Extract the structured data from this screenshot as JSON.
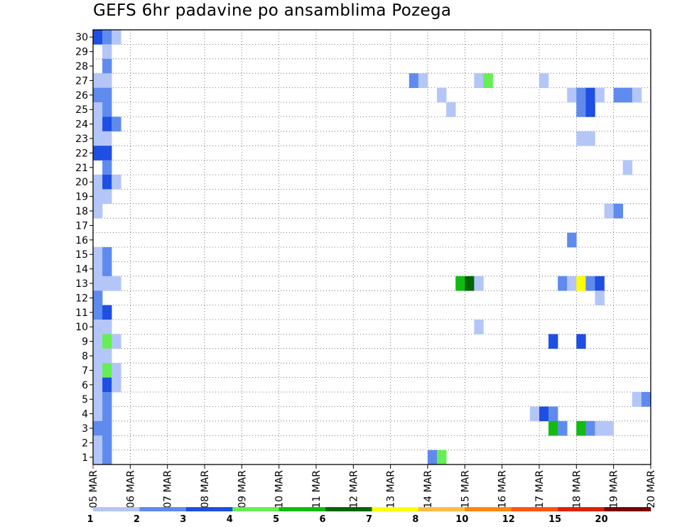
{
  "chart_data": {
    "type": "heatmap",
    "title": "GEFS 6hr padavine po ansamblima Pozega",
    "xlabel": "",
    "ylabel": "",
    "x_tick_labels": [
      "05 MAR",
      "06 MAR",
      "07 MAR",
      "08 MAR",
      "09 MAR",
      "10 MAR",
      "11 MAR",
      "12 MAR",
      "13 MAR",
      "14 MAR",
      "15 MAR",
      "16 MAR",
      "17 MAR",
      "18 MAR",
      "19 MAR",
      "20 MAR"
    ],
    "xlim_days": [
      0,
      15
    ],
    "ylim_members": [
      0,
      30
    ],
    "y_tick_labels": [
      "1",
      "2",
      "3",
      "4",
      "5",
      "6",
      "7",
      "8",
      "9",
      "10",
      "11",
      "12",
      "13",
      "14",
      "15",
      "16",
      "17",
      "18",
      "19",
      "20",
      "21",
      "22",
      "23",
      "24",
      "25",
      "26",
      "27",
      "28",
      "29",
      "30"
    ],
    "grid": "dotted",
    "legend": {
      "placement": "bottom",
      "labels": [
        "1",
        "2",
        "3",
        "4",
        "5",
        "6",
        "7",
        "8",
        "10",
        "12",
        "15",
        "20"
      ],
      "colors": [
        "#b4c6f8",
        "#5f8bee",
        "#1e4fe2",
        "#66ee55",
        "#11bb11",
        "#006600",
        "#ffff00",
        "#ffbb44",
        "#ff8811",
        "#ff5511",
        "#dd2200",
        "#770000"
      ]
    },
    "time_step_hours": 6,
    "levels": [
      "<1",
      "1-2",
      "2-3",
      "3-4",
      "4-5",
      "5-6",
      "6-7",
      "7-8",
      "8-10",
      "10-12",
      "12-15",
      "15-20",
      ">20"
    ],
    "cells": [
      {
        "m": 30,
        "t": 1,
        "v": 3
      },
      {
        "m": 30,
        "t": 2,
        "v": 2
      },
      {
        "m": 30,
        "t": 3,
        "v": 1
      },
      {
        "m": 29,
        "t": 2,
        "v": 1
      },
      {
        "m": 28,
        "t": 2,
        "v": 2
      },
      {
        "m": 27,
        "t": 1,
        "v": 1
      },
      {
        "m": 27,
        "t": 2,
        "v": 1
      },
      {
        "m": 27,
        "t": 35,
        "v": 2
      },
      {
        "m": 27,
        "t": 36,
        "v": 1
      },
      {
        "m": 27,
        "t": 42,
        "v": 1
      },
      {
        "m": 27,
        "t": 43,
        "v": 4
      },
      {
        "m": 27,
        "t": 49,
        "v": 1
      },
      {
        "m": 26,
        "t": 1,
        "v": 2
      },
      {
        "m": 26,
        "t": 2,
        "v": 2
      },
      {
        "m": 26,
        "t": 38,
        "v": 1
      },
      {
        "m": 26,
        "t": 52,
        "v": 1
      },
      {
        "m": 26,
        "t": 53,
        "v": 2
      },
      {
        "m": 26,
        "t": 54,
        "v": 3
      },
      {
        "m": 26,
        "t": 55,
        "v": 1
      },
      {
        "m": 26,
        "t": 57,
        "v": 2
      },
      {
        "m": 26,
        "t": 58,
        "v": 2
      },
      {
        "m": 26,
        "t": 59,
        "v": 1
      },
      {
        "m": 25,
        "t": 1,
        "v": 1
      },
      {
        "m": 25,
        "t": 2,
        "v": 2
      },
      {
        "m": 25,
        "t": 39,
        "v": 1
      },
      {
        "m": 25,
        "t": 53,
        "v": 2
      },
      {
        "m": 25,
        "t": 54,
        "v": 3
      },
      {
        "m": 24,
        "t": 1,
        "v": 1
      },
      {
        "m": 24,
        "t": 2,
        "v": 3
      },
      {
        "m": 24,
        "t": 3,
        "v": 2
      },
      {
        "m": 23,
        "t": 1,
        "v": 1
      },
      {
        "m": 23,
        "t": 2,
        "v": 1
      },
      {
        "m": 23,
        "t": 53,
        "v": 1
      },
      {
        "m": 23,
        "t": 54,
        "v": 1
      },
      {
        "m": 22,
        "t": 1,
        "v": 3
      },
      {
        "m": 22,
        "t": 2,
        "v": 3
      },
      {
        "m": 21,
        "t": 2,
        "v": 2
      },
      {
        "m": 21,
        "t": 58,
        "v": 1
      },
      {
        "m": 20,
        "t": 1,
        "v": 1
      },
      {
        "m": 20,
        "t": 2,
        "v": 3
      },
      {
        "m": 20,
        "t": 3,
        "v": 1
      },
      {
        "m": 19,
        "t": 1,
        "v": 1
      },
      {
        "m": 19,
        "t": 2,
        "v": 1
      },
      {
        "m": 18,
        "t": 1,
        "v": 1
      },
      {
        "m": 18,
        "t": 56,
        "v": 1
      },
      {
        "m": 18,
        "t": 57,
        "v": 2
      },
      {
        "m": 16,
        "t": 52,
        "v": 2
      },
      {
        "m": 15,
        "t": 1,
        "v": 1
      },
      {
        "m": 15,
        "t": 2,
        "v": 2
      },
      {
        "m": 14,
        "t": 1,
        "v": 1
      },
      {
        "m": 14,
        "t": 2,
        "v": 2
      },
      {
        "m": 13,
        "t": 1,
        "v": 1
      },
      {
        "m": 13,
        "t": 2,
        "v": 1
      },
      {
        "m": 13,
        "t": 3,
        "v": 1
      },
      {
        "m": 13,
        "t": 40,
        "v": 5
      },
      {
        "m": 13,
        "t": 41,
        "v": 6
      },
      {
        "m": 13,
        "t": 42,
        "v": 1
      },
      {
        "m": 13,
        "t": 51,
        "v": 2
      },
      {
        "m": 13,
        "t": 52,
        "v": 1
      },
      {
        "m": 13,
        "t": 53,
        "v": 7
      },
      {
        "m": 13,
        "t": 54,
        "v": 2
      },
      {
        "m": 13,
        "t": 55,
        "v": 3
      },
      {
        "m": 12,
        "t": 1,
        "v": 2
      },
      {
        "m": 12,
        "t": 55,
        "v": 1
      },
      {
        "m": 11,
        "t": 1,
        "v": 2
      },
      {
        "m": 11,
        "t": 2,
        "v": 3
      },
      {
        "m": 10,
        "t": 1,
        "v": 1
      },
      {
        "m": 10,
        "t": 2,
        "v": 1
      },
      {
        "m": 10,
        "t": 42,
        "v": 1
      },
      {
        "m": 9,
        "t": 1,
        "v": 1
      },
      {
        "m": 9,
        "t": 2,
        "v": 4
      },
      {
        "m": 9,
        "t": 3,
        "v": 1
      },
      {
        "m": 9,
        "t": 50,
        "v": 3
      },
      {
        "m": 9,
        "t": 53,
        "v": 3
      },
      {
        "m": 8,
        "t": 1,
        "v": 1
      },
      {
        "m": 8,
        "t": 2,
        "v": 1
      },
      {
        "m": 7,
        "t": 1,
        "v": 1
      },
      {
        "m": 7,
        "t": 2,
        "v": 4
      },
      {
        "m": 7,
        "t": 3,
        "v": 1
      },
      {
        "m": 6,
        "t": 1,
        "v": 1
      },
      {
        "m": 6,
        "t": 2,
        "v": 3
      },
      {
        "m": 6,
        "t": 3,
        "v": 1
      },
      {
        "m": 5,
        "t": 1,
        "v": 1
      },
      {
        "m": 5,
        "t": 2,
        "v": 2
      },
      {
        "m": 5,
        "t": 59,
        "v": 1
      },
      {
        "m": 5,
        "t": 60,
        "v": 2
      },
      {
        "m": 4,
        "t": 1,
        "v": 1
      },
      {
        "m": 4,
        "t": 2,
        "v": 2
      },
      {
        "m": 4,
        "t": 48,
        "v": 1
      },
      {
        "m": 4,
        "t": 49,
        "v": 3
      },
      {
        "m": 4,
        "t": 50,
        "v": 2
      },
      {
        "m": 3,
        "t": 1,
        "v": 2
      },
      {
        "m": 3,
        "t": 2,
        "v": 2
      },
      {
        "m": 3,
        "t": 50,
        "v": 5
      },
      {
        "m": 3,
        "t": 51,
        "v": 2
      },
      {
        "m": 3,
        "t": 53,
        "v": 5
      },
      {
        "m": 3,
        "t": 54,
        "v": 2
      },
      {
        "m": 3,
        "t": 55,
        "v": 1
      },
      {
        "m": 3,
        "t": 56,
        "v": 1
      },
      {
        "m": 2,
        "t": 1,
        "v": 1
      },
      {
        "m": 2,
        "t": 2,
        "v": 2
      },
      {
        "m": 1,
        "t": 1,
        "v": 1
      },
      {
        "m": 1,
        "t": 2,
        "v": 2
      },
      {
        "m": 1,
        "t": 37,
        "v": 2
      },
      {
        "m": 1,
        "t": 38,
        "v": 4
      }
    ]
  }
}
